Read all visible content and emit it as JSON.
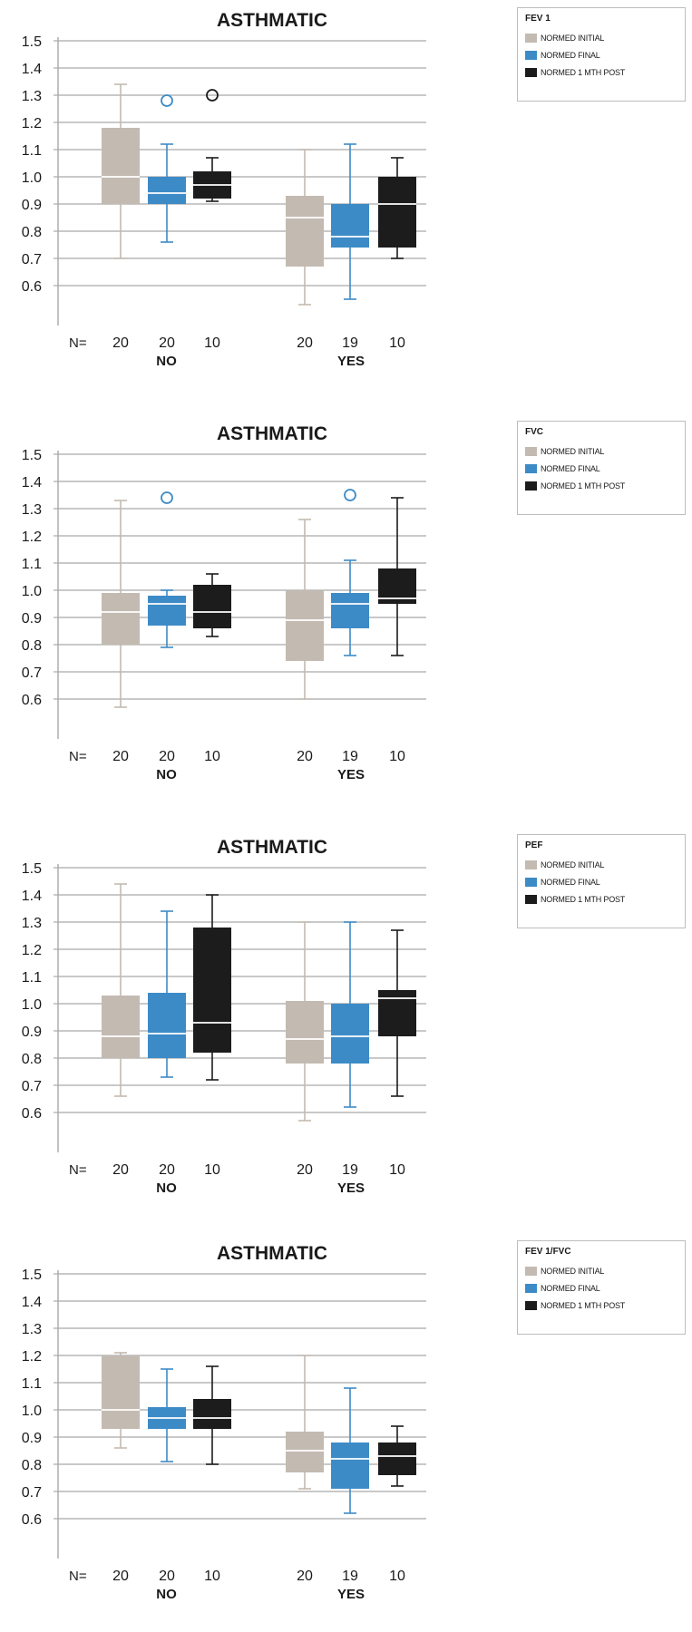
{
  "colors": {
    "initial": "#c3bab1",
    "final": "#3d8bc6",
    "post": "#1c1c1c",
    "grid": "#a9a9a9",
    "text": "#1a1a1a"
  },
  "chart_data": [
    {
      "type": "boxplot",
      "title": "ASTHMATIC",
      "legend_title": "FEV 1",
      "legend_placement": "right",
      "grid": true,
      "ylim": [
        0.5,
        1.5
      ],
      "yticks": [
        "1.5",
        "1.4",
        "1.3",
        "1.2",
        "1.1",
        "1.0",
        "0.9",
        "0.8",
        "0.7",
        "0.6"
      ],
      "n_label": "N=",
      "groups": [
        "NO",
        "YES"
      ],
      "series_names": [
        "NORMED INITIAL",
        "NORMED FINAL",
        "NORMED 1 MTH POST"
      ],
      "boxes": [
        {
          "group": "NO",
          "series": "NORMED INITIAL",
          "n": "20",
          "min": 0.7,
          "q1": 0.9,
          "median": 1.0,
          "q3": 1.18,
          "max": 1.34,
          "outliers": []
        },
        {
          "group": "NO",
          "series": "NORMED FINAL",
          "n": "20",
          "min": 0.76,
          "q1": 0.9,
          "median": 0.94,
          "q3": 1.0,
          "max": 1.12,
          "outliers": [
            1.28
          ]
        },
        {
          "group": "NO",
          "series": "NORMED 1 MTH POST",
          "n": "10",
          "min": 0.91,
          "q1": 0.92,
          "median": 0.97,
          "q3": 1.02,
          "max": 1.07,
          "outliers": [
            1.3
          ]
        },
        {
          "group": "YES",
          "series": "NORMED INITIAL",
          "n": "20",
          "min": 0.53,
          "q1": 0.67,
          "median": 0.85,
          "q3": 0.93,
          "max": 1.1,
          "outliers": []
        },
        {
          "group": "YES",
          "series": "NORMED FINAL",
          "n": "19",
          "min": 0.55,
          "q1": 0.74,
          "median": 0.78,
          "q3": 0.9,
          "max": 1.12,
          "outliers": []
        },
        {
          "group": "YES",
          "series": "NORMED 1 MTH POST",
          "n": "10",
          "min": 0.7,
          "q1": 0.74,
          "median": 0.9,
          "q3": 1.0,
          "max": 1.07,
          "outliers": []
        }
      ]
    },
    {
      "type": "boxplot",
      "title": "ASTHMATIC",
      "legend_title": "FVC",
      "legend_placement": "right",
      "grid": true,
      "ylim": [
        0.5,
        1.5
      ],
      "yticks": [
        "1.5",
        "1.4",
        "1.3",
        "1.2",
        "1.1",
        "1.0",
        "0.9",
        "0.8",
        "0.7",
        "0.6"
      ],
      "n_label": "N=",
      "groups": [
        "NO",
        "YES"
      ],
      "series_names": [
        "NORMED INITIAL",
        "NORMED FINAL",
        "NORMED 1 MTH POST"
      ],
      "boxes": [
        {
          "group": "NO",
          "series": "NORMED INITIAL",
          "n": "20",
          "min": 0.57,
          "q1": 0.8,
          "median": 0.92,
          "q3": 0.99,
          "max": 1.33,
          "outliers": []
        },
        {
          "group": "NO",
          "series": "NORMED FINAL",
          "n": "20",
          "min": 0.79,
          "q1": 0.87,
          "median": 0.95,
          "q3": 0.98,
          "max": 1.0,
          "outliers": [
            1.34
          ]
        },
        {
          "group": "NO",
          "series": "NORMED 1 MTH POST",
          "n": "10",
          "min": 0.83,
          "q1": 0.86,
          "median": 0.92,
          "q3": 1.02,
          "max": 1.06,
          "outliers": []
        },
        {
          "group": "YES",
          "series": "NORMED INITIAL",
          "n": "20",
          "min": 0.6,
          "q1": 0.74,
          "median": 0.89,
          "q3": 1.0,
          "max": 1.26,
          "outliers": []
        },
        {
          "group": "YES",
          "series": "NORMED FINAL",
          "n": "19",
          "min": 0.76,
          "q1": 0.86,
          "median": 0.95,
          "q3": 0.99,
          "max": 1.11,
          "outliers": [
            1.35
          ]
        },
        {
          "group": "YES",
          "series": "NORMED 1 MTH POST",
          "n": "10",
          "min": 0.76,
          "q1": 0.95,
          "median": 0.97,
          "q3": 1.08,
          "max": 1.34,
          "outliers": []
        }
      ]
    },
    {
      "type": "boxplot",
      "title": "ASTHMATIC",
      "legend_title": "PEF",
      "legend_placement": "right",
      "grid": true,
      "ylim": [
        0.5,
        1.5
      ],
      "yticks": [
        "1.5",
        "1.4",
        "1.3",
        "1.2",
        "1.1",
        "1.0",
        "0.9",
        "0.8",
        "0.7",
        "0.6"
      ],
      "n_label": "N=",
      "groups": [
        "NO",
        "YES"
      ],
      "series_names": [
        "NORMED INITIAL",
        "NORMED FINAL",
        "NORMED 1 MTH POST"
      ],
      "boxes": [
        {
          "group": "NO",
          "series": "NORMED INITIAL",
          "n": "20",
          "min": 0.66,
          "q1": 0.8,
          "median": 0.88,
          "q3": 1.03,
          "max": 1.44,
          "outliers": []
        },
        {
          "group": "NO",
          "series": "NORMED FINAL",
          "n": "20",
          "min": 0.73,
          "q1": 0.8,
          "median": 0.89,
          "q3": 1.04,
          "max": 1.34,
          "outliers": []
        },
        {
          "group": "NO",
          "series": "NORMED 1 MTH POST",
          "n": "10",
          "min": 0.72,
          "q1": 0.82,
          "median": 0.93,
          "q3": 1.28,
          "max": 1.4,
          "outliers": []
        },
        {
          "group": "YES",
          "series": "NORMED INITIAL",
          "n": "20",
          "min": 0.57,
          "q1": 0.78,
          "median": 0.87,
          "q3": 1.01,
          "max": 1.3,
          "outliers": []
        },
        {
          "group": "YES",
          "series": "NORMED FINAL",
          "n": "19",
          "min": 0.62,
          "q1": 0.78,
          "median": 0.88,
          "q3": 1.0,
          "max": 1.3,
          "outliers": []
        },
        {
          "group": "YES",
          "series": "NORMED 1 MTH POST",
          "n": "10",
          "min": 0.66,
          "q1": 0.88,
          "median": 1.02,
          "q3": 1.05,
          "max": 1.27,
          "outliers": []
        }
      ]
    },
    {
      "type": "boxplot",
      "title": "ASTHMATIC",
      "legend_title": "FEV 1/FVC",
      "legend_placement": "right",
      "grid": true,
      "ylim": [
        0.5,
        1.5
      ],
      "yticks": [
        "1.5",
        "1.4",
        "1.3",
        "1.2",
        "1.1",
        "1.0",
        "0.9",
        "0.8",
        "0.7",
        "0.6"
      ],
      "n_label": "N=",
      "groups": [
        "NO",
        "YES"
      ],
      "series_names": [
        "NORMED INITIAL",
        "NORMED FINAL",
        "NORMED 1 MTH POST"
      ],
      "boxes": [
        {
          "group": "NO",
          "series": "NORMED INITIAL",
          "n": "20",
          "min": 0.86,
          "q1": 0.93,
          "median": 1.0,
          "q3": 1.2,
          "max": 1.21,
          "outliers": []
        },
        {
          "group": "NO",
          "series": "NORMED FINAL",
          "n": "20",
          "min": 0.81,
          "q1": 0.93,
          "median": 0.97,
          "q3": 1.01,
          "max": 1.15,
          "outliers": []
        },
        {
          "group": "NO",
          "series": "NORMED 1 MTH POST",
          "n": "10",
          "min": 0.8,
          "q1": 0.93,
          "median": 0.97,
          "q3": 1.04,
          "max": 1.16,
          "outliers": []
        },
        {
          "group": "YES",
          "series": "NORMED INITIAL",
          "n": "20",
          "min": 0.71,
          "q1": 0.77,
          "median": 0.85,
          "q3": 0.92,
          "max": 1.2,
          "outliers": []
        },
        {
          "group": "YES",
          "series": "NORMED FINAL",
          "n": "19",
          "min": 0.62,
          "q1": 0.71,
          "median": 0.82,
          "q3": 0.88,
          "max": 1.08,
          "outliers": []
        },
        {
          "group": "YES",
          "series": "NORMED 1 MTH POST",
          "n": "10",
          "min": 0.72,
          "q1": 0.76,
          "median": 0.83,
          "q3": 0.88,
          "max": 0.94,
          "outliers": []
        }
      ]
    }
  ]
}
